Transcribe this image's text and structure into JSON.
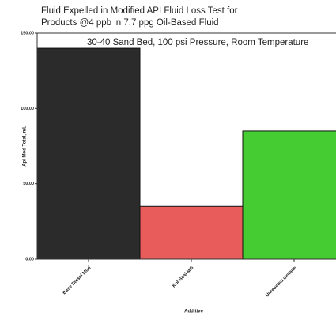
{
  "chart_data": {
    "type": "bar",
    "title": [
      "Fluid Expelled in Modified API Fluid Loss Test for",
      "Products @4 ppb in 7.7 ppg  Oil-Based Fluid"
    ],
    "subtitle": "30-40 Sand Bed, 100 psi Pressure, Room Temperature",
    "x_label": "Additive",
    "y_label": "Api Mod Total, mL",
    "categories": [
      "Base Diesel Mud",
      "Kol-Seal MG",
      "Unreacted uintaite"
    ],
    "values": [
      140,
      35,
      85
    ],
    "colors": [
      "#2b2b2b",
      "#e85c5c",
      "#45cc33"
    ],
    "ylim": [
      0,
      150
    ],
    "yticks": [
      {
        "value": 0,
        "label": "0.00"
      },
      {
        "value": 50,
        "label": "50.00"
      },
      {
        "value": 100,
        "label": "100.00"
      },
      {
        "value": 150,
        "label": "150.00"
      }
    ],
    "grid": false
  }
}
